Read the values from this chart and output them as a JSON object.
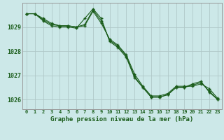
{
  "hours": [
    0,
    1,
    2,
    3,
    4,
    5,
    6,
    7,
    8,
    9,
    10,
    11,
    12,
    13,
    14,
    15,
    16,
    17,
    18,
    19,
    20,
    21,
    22,
    23
  ],
  "line1": [
    1029.55,
    1029.55,
    1029.35,
    1029.15,
    1029.05,
    1029.05,
    1029.0,
    1029.05,
    1029.65,
    1029.15,
    1028.5,
    1028.25,
    1027.85,
    1027.05,
    1026.55,
    1026.15,
    1026.15,
    1026.25,
    1026.55,
    1026.55,
    1026.55,
    1026.65,
    1026.45,
    1026.05
  ],
  "line2": [
    1029.55,
    1029.55,
    1029.3,
    1029.1,
    1029.05,
    1029.05,
    1029.0,
    1029.1,
    1029.7,
    1029.25,
    1028.45,
    1028.2,
    1027.8,
    1026.95,
    1026.5,
    1026.1,
    1026.1,
    1026.2,
    1026.5,
    1026.5,
    1026.6,
    1026.7,
    1026.35,
    1026.0
  ],
  "line3": [
    1029.55,
    1029.55,
    1029.25,
    1029.05,
    1029.0,
    1029.0,
    1028.95,
    1029.35,
    1029.75,
    1029.35,
    1028.4,
    1028.15,
    1027.75,
    1026.9,
    1026.5,
    1026.1,
    1026.1,
    1026.2,
    1026.5,
    1026.5,
    1026.65,
    1026.75,
    1026.3,
    1026.0
  ],
  "yticks": [
    1026,
    1027,
    1028,
    1029
  ],
  "ylim": [
    1025.6,
    1030.0
  ],
  "xlim": [
    -0.5,
    23.5
  ],
  "bg_color": "#cce8e8",
  "line_color": "#1a5c1a",
  "grid_color": "#b0c8c8",
  "xlabel": "Graphe pression niveau de la mer (hPa)",
  "xlabel_color": "#1a5c1a"
}
